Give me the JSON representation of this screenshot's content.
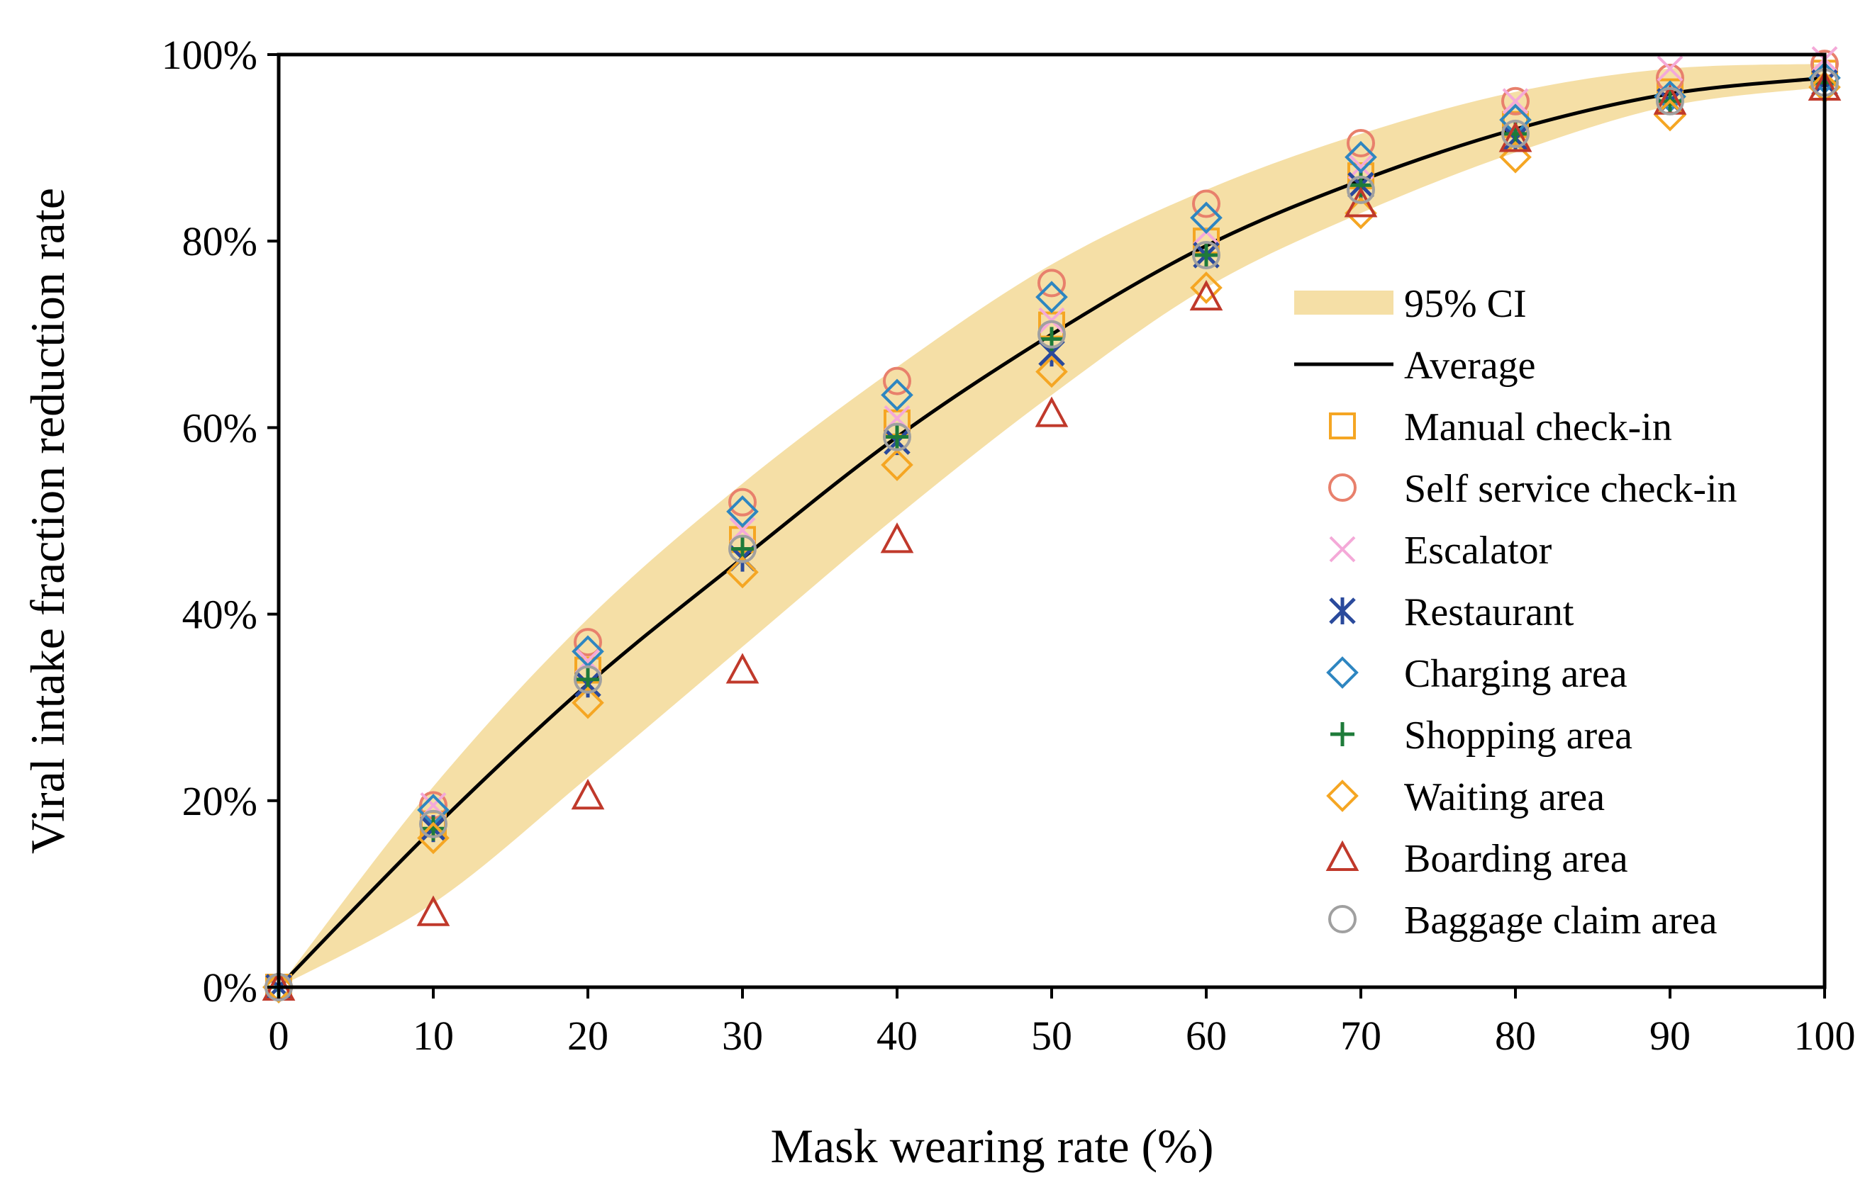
{
  "chart_data": {
    "type": "scatter",
    "xlabel": "Mask wearing rate (%)",
    "ylabel": "Viral intake fraction reduction rate",
    "xlim": [
      0,
      100
    ],
    "ylim": [
      0,
      100
    ],
    "x": [
      0,
      10,
      20,
      30,
      40,
      50,
      60,
      70,
      80,
      90,
      100
    ],
    "x_tick_labels": [
      "0",
      "10",
      "20",
      "30",
      "40",
      "50",
      "60",
      "70",
      "80",
      "90",
      "100"
    ],
    "y_ticks": [
      0,
      20,
      40,
      60,
      80,
      100
    ],
    "y_tick_labels": [
      "0%",
      "20%",
      "40%",
      "60%",
      "80%",
      "100%"
    ],
    "grid": false,
    "legend_position": "right-middle",
    "ci": {
      "name": "95% CI",
      "color": "#f5dfa6",
      "lower": [
        0,
        9,
        22.5,
        36.5,
        50.5,
        63.5,
        75,
        83,
        89.5,
        94.5,
        96.5
      ],
      "upper": [
        0,
        21.5,
        39.5,
        54,
        66.5,
        77.5,
        85.5,
        91.5,
        96,
        98.5,
        99
      ]
    },
    "average": {
      "name": "Average",
      "color": "#000000",
      "values": [
        0,
        17,
        32.5,
        46,
        59,
        70,
        79.5,
        86.5,
        92,
        95.8,
        97.5
      ]
    },
    "series": [
      {
        "name": "Manual check-in",
        "marker": "square",
        "color": "#f5a623",
        "values": [
          0,
          17.5,
          34,
          48,
          60.5,
          71,
          80,
          87,
          92.5,
          96,
          98
        ]
      },
      {
        "name": "Self service check-in",
        "marker": "circle",
        "color": "#e8806c",
        "values": [
          0,
          19.5,
          37,
          52,
          65,
          75.5,
          84,
          90.5,
          95,
          97.5,
          99
        ]
      },
      {
        "name": "Escalator",
        "marker": "x",
        "color": "#f4a9d8",
        "values": [
          0,
          19.5,
          35,
          49,
          61,
          71.5,
          81,
          88,
          95,
          98.5,
          99.5
        ]
      },
      {
        "name": "Restaurant",
        "marker": "asterisk",
        "color": "#2a4a9c",
        "values": [
          0,
          17,
          32.5,
          46,
          58.5,
          68,
          78.5,
          86,
          91,
          95,
          97
        ]
      },
      {
        "name": "Charging area",
        "marker": "diamond",
        "color": "#2e86c1",
        "values": [
          0,
          19,
          36,
          51,
          63.5,
          74,
          82.5,
          89,
          93,
          95.5,
          97.5
        ]
      },
      {
        "name": "Shopping area",
        "marker": "plus",
        "color": "#1e7b3a",
        "values": [
          0,
          17,
          33,
          47,
          59,
          69.5,
          78.5,
          86,
          91.5,
          95,
          97
        ]
      },
      {
        "name": "Waiting area",
        "marker": "diamond",
        "color": "#f5a623",
        "values": [
          0,
          16,
          30.5,
          44.5,
          56,
          66,
          75,
          83,
          89,
          93.5,
          96.5
        ]
      },
      {
        "name": "Boarding area",
        "marker": "triangle",
        "color": "#c0392b",
        "values": [
          0,
          8,
          20.5,
          34,
          48,
          61.5,
          74,
          84,
          91,
          95,
          96.5
        ]
      },
      {
        "name": "Baggage claim area",
        "marker": "circle",
        "color": "#a0a0a0",
        "values": [
          0,
          17.5,
          33,
          47,
          59,
          70,
          78.5,
          85.5,
          91.5,
          95,
          97
        ]
      }
    ]
  }
}
